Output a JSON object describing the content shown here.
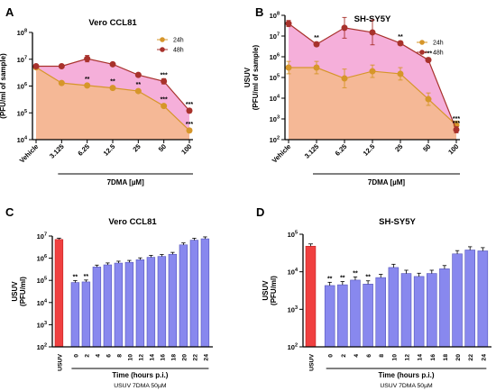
{
  "chart_data": [
    {
      "panel": "A",
      "type": "line",
      "title": "Vero CCL81",
      "ylabel": "USUV (PFU/ml of sample)",
      "xlabel": "7DMA [µM]",
      "categories": [
        "Vehicle",
        "3.125",
        "6.25",
        "12.5",
        "25",
        "50",
        "100"
      ],
      "y_scale": "log",
      "ylim": [
        10000,
        100000000
      ],
      "y_ticks": [
        "10^4",
        "10^5",
        "10^6",
        "10^7",
        "10^8"
      ],
      "legend_position": "top-right",
      "series": [
        {
          "name": "24h",
          "color": "#d6962a",
          "fill": "#f5b98e",
          "values": [
            5000000,
            1300000,
            1050000,
            850000,
            650000,
            180000,
            22000
          ],
          "err": [
            0.06,
            0.04,
            0.05,
            0.04,
            0.05,
            0.05,
            0.08
          ]
        },
        {
          "name": "48h",
          "color": "#a8322c",
          "fill": "#f4a6d6",
          "values": [
            5500000,
            5500000,
            10500000,
            6500000,
            2600000,
            1500000,
            120000
          ],
          "err": [
            0.06,
            0.05,
            0.12,
            0.04,
            0.06,
            0.1,
            0.08
          ]
        }
      ],
      "significance": [
        {
          "category": "6.25",
          "label": "**",
          "series": "24h"
        },
        {
          "category": "12.5",
          "label": "**",
          "series": "24h"
        },
        {
          "category": "25",
          "label": "**",
          "series": "24h"
        },
        {
          "category": "50",
          "label": "***",
          "series": "24h"
        },
        {
          "category": "100",
          "label": "***",
          "series": "24h"
        },
        {
          "category": "50",
          "label": "***",
          "series": "48h"
        },
        {
          "category": "100",
          "label": "***",
          "series": "48h"
        }
      ]
    },
    {
      "panel": "B",
      "type": "line",
      "title": "SH-SY5Y",
      "ylabel": "USUV (PFU/ml of sample)",
      "xlabel": "7DMA [µM]",
      "categories": [
        "Vehicle",
        "3.125",
        "6.25",
        "12.5",
        "25",
        "50",
        "100"
      ],
      "y_scale": "log",
      "ylim": [
        100,
        100000000
      ],
      "y_ticks": [
        "10^2",
        "10^3",
        "10^4",
        "10^5",
        "10^6",
        "10^7",
        "10^8"
      ],
      "legend_position": "top-right",
      "series": [
        {
          "name": "24h",
          "color": "#d6962a",
          "fill": "#f5b98e",
          "values": [
            300000,
            300000,
            90000,
            200000,
            150000,
            9000,
            500
          ],
          "err": [
            0.3,
            0.3,
            0.45,
            0.3,
            0.3,
            0.3,
            0.2
          ]
        },
        {
          "name": "48h",
          "color": "#a8322c",
          "fill": "#f4a6d6",
          "values": [
            40000000,
            4000000,
            25000000,
            15000000,
            4500000,
            700000,
            300
          ],
          "err": [
            0.15,
            0.1,
            0.5,
            0.6,
            0.1,
            0.1,
            0.15
          ]
        }
      ],
      "significance": [
        {
          "category": "3.125",
          "label": "**",
          "series": "48h"
        },
        {
          "category": "25",
          "label": "**",
          "series": "48h"
        },
        {
          "category": "50",
          "label": "***",
          "series": "48h"
        },
        {
          "category": "100",
          "label": "***",
          "series": "24h"
        },
        {
          "category": "100",
          "label": "***",
          "series": "48h"
        }
      ]
    },
    {
      "panel": "C",
      "type": "bar",
      "title": "Vero CCL81",
      "ylabel": "USUV (PFU/ml)",
      "xlabel": "Time (hours p.i.)",
      "subtitle": "USUV 7DMA 50µM",
      "y_scale": "log",
      "ylim": [
        100,
        10000000
      ],
      "y_ticks": [
        "10^2",
        "10^3",
        "10^4",
        "10^5",
        "10^6",
        "10^7"
      ],
      "control": {
        "label": "USUV",
        "value": 7000000,
        "color": "#f04040"
      },
      "categories": [
        "0",
        "2",
        "4",
        "6",
        "8",
        "10",
        "12",
        "14",
        "16",
        "18",
        "20",
        "22",
        "24"
      ],
      "values": [
        80000,
        85000,
        400000,
        500000,
        600000,
        650000,
        850000,
        1100000,
        1200000,
        1500000,
        4000000,
        6500000,
        7500000
      ],
      "bar_color": "#8888ee",
      "significance": [
        {
          "category": "0",
          "label": "**"
        },
        {
          "category": "2",
          "label": "**"
        }
      ]
    },
    {
      "panel": "D",
      "type": "bar",
      "title": "SH-SY5Y",
      "ylabel": "USUV (PFU/ml)",
      "xlabel": "Time (hours p.i.)",
      "subtitle": "USUV 7DMA 50µM",
      "y_scale": "log",
      "ylim": [
        100,
        100000
      ],
      "y_ticks": [
        "10^2",
        "10^3",
        "10^4",
        "10^5"
      ],
      "control": {
        "label": "USUV",
        "value": 48000,
        "color": "#f04040"
      },
      "categories": [
        "0",
        "2",
        "4",
        "6",
        "8",
        "10",
        "12",
        "14",
        "16",
        "18",
        "20",
        "22",
        "24"
      ],
      "values": [
        4300,
        4500,
        6000,
        4700,
        7000,
        13000,
        9000,
        7500,
        9000,
        12000,
        30000,
        38000,
        36000
      ],
      "bar_color": "#8888ee",
      "significance": [
        {
          "category": "0",
          "label": "**"
        },
        {
          "category": "2",
          "label": "**"
        },
        {
          "category": "4",
          "label": "**"
        },
        {
          "category": "6",
          "label": "**"
        }
      ]
    }
  ]
}
